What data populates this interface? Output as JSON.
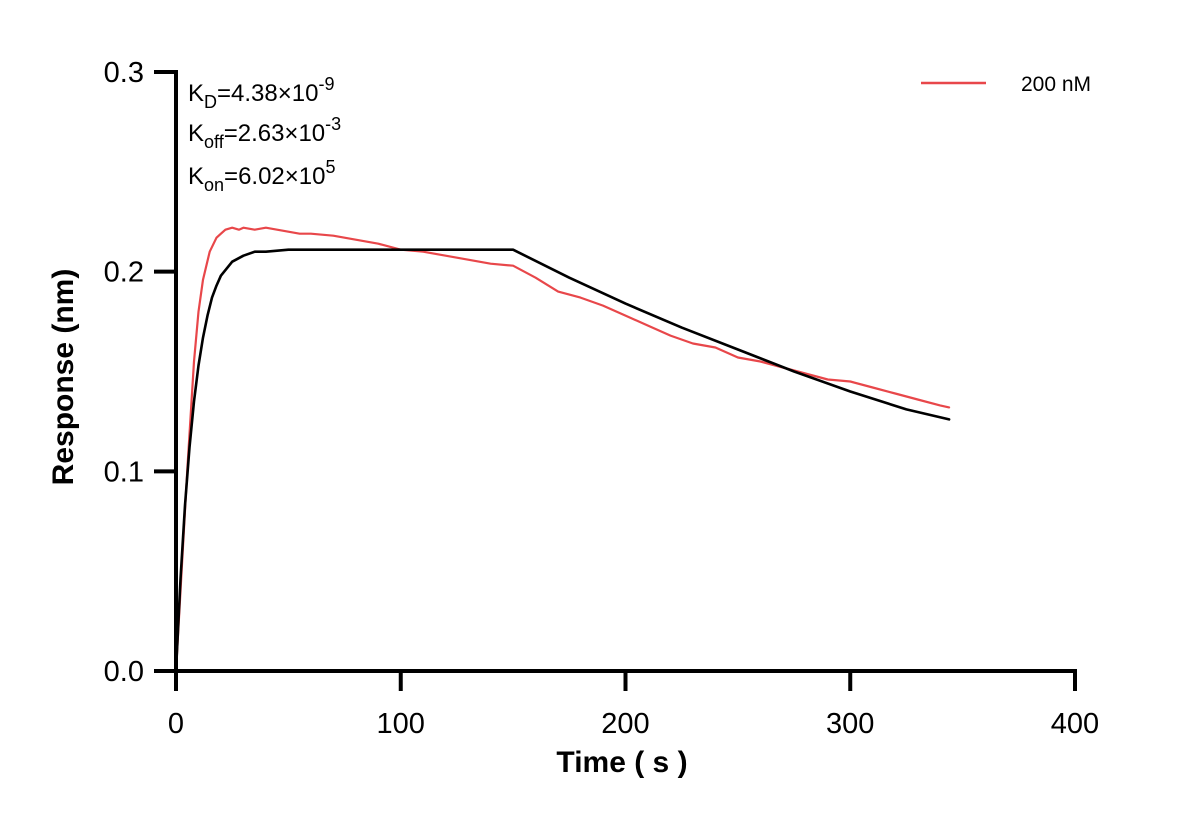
{
  "chart_data": {
    "type": "line",
    "xlabel": "Time ( s )",
    "ylabel": "Response (nm)",
    "xlim": [
      0,
      400
    ],
    "ylim": [
      0,
      0.3
    ],
    "x_ticks": [
      0,
      100,
      200,
      300,
      400
    ],
    "x_tick_labels": [
      "0",
      "100",
      "200",
      "300",
      "400"
    ],
    "y_ticks": [
      0.0,
      0.1,
      0.2,
      0.3
    ],
    "y_tick_labels": [
      "0.0",
      "0.1",
      "0.2",
      "0.3"
    ],
    "grid": false,
    "legend": {
      "position": "top-right",
      "entries": [
        "200 nM"
      ]
    },
    "annotations": {
      "kd": {
        "base": "K",
        "sub": "D",
        "main": "=4.38×10",
        "exp": "-9"
      },
      "koff": {
        "base": "K",
        "sub": "off",
        "main": "=2.63×10",
        "exp": "-3"
      },
      "kon": {
        "base": "K",
        "sub": "on",
        "main": "=6.02×10",
        "exp": "5"
      }
    },
    "series": [
      {
        "name": "200 nM",
        "color": "#e8474a",
        "role": "measured",
        "x": [
          0,
          2,
          5,
          8,
          10,
          12,
          15,
          18,
          20,
          22,
          25,
          28,
          30,
          35,
          40,
          45,
          50,
          55,
          60,
          70,
          80,
          90,
          100,
          110,
          120,
          130,
          140,
          150,
          160,
          170,
          180,
          190,
          200,
          210,
          220,
          230,
          240,
          250,
          260,
          270,
          280,
          290,
          300,
          310,
          320,
          330,
          340,
          344
        ],
        "y": [
          0.0,
          0.04,
          0.1,
          0.155,
          0.18,
          0.196,
          0.21,
          0.217,
          0.219,
          0.221,
          0.222,
          0.221,
          0.222,
          0.221,
          0.222,
          0.221,
          0.22,
          0.219,
          0.219,
          0.218,
          0.216,
          0.214,
          0.211,
          0.21,
          0.208,
          0.206,
          0.204,
          0.203,
          0.197,
          0.19,
          0.187,
          0.183,
          0.178,
          0.173,
          0.168,
          0.164,
          0.162,
          0.157,
          0.155,
          0.152,
          0.149,
          0.146,
          0.145,
          0.142,
          0.139,
          0.136,
          0.133,
          0.132
        ]
      },
      {
        "name": "",
        "color": "#000000",
        "role": "fit",
        "x": [
          0,
          2,
          4,
          6,
          8,
          10,
          12,
          14,
          16,
          18,
          20,
          25,
          30,
          35,
          40,
          50,
          60,
          80,
          100,
          120,
          150,
          175,
          200,
          225,
          250,
          275,
          300,
          325,
          344
        ],
        "y": [
          0.0,
          0.046,
          0.083,
          0.112,
          0.135,
          0.153,
          0.167,
          0.178,
          0.187,
          0.193,
          0.198,
          0.205,
          0.208,
          0.21,
          0.21,
          0.211,
          0.211,
          0.211,
          0.211,
          0.211,
          0.211,
          0.197,
          0.184,
          0.172,
          0.161,
          0.15,
          0.14,
          0.131,
          0.126
        ]
      }
    ]
  }
}
